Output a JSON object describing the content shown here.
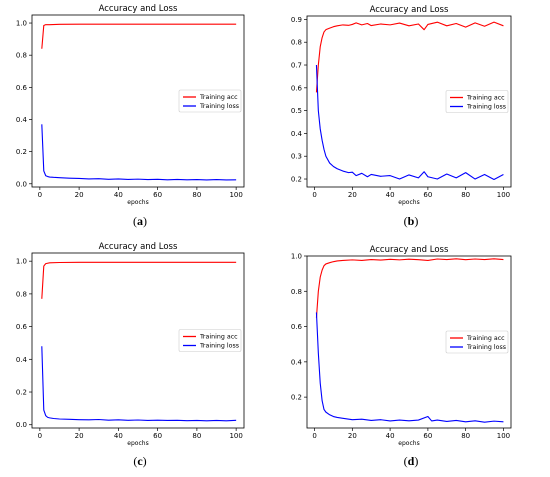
{
  "colors": {
    "acc": "#ff0000",
    "loss": "#0000ff",
    "axis": "#000000"
  },
  "chart_data": [
    {
      "type": "line",
      "caption_letter": "a",
      "title": "Accuracy and Loss",
      "xlabel": "epochs",
      "ylabel": "",
      "xlim": [
        -4,
        104
      ],
      "ylim": [
        -0.02,
        1.05
      ],
      "xticks": [
        0,
        20,
        40,
        60,
        80,
        100
      ],
      "yticks": [
        0.0,
        0.2,
        0.4,
        0.6,
        0.8,
        1.0
      ],
      "ytick_labels": [
        "0.0",
        "0.2",
        "0.4",
        "0.6",
        "0.8",
        "1.0"
      ],
      "legend": "center-right",
      "grid": false,
      "series": [
        {
          "name": "Training acc",
          "color": "#ff0000",
          "x": [
            1,
            2,
            3,
            5,
            10,
            20,
            30,
            40,
            50,
            60,
            70,
            80,
            90,
            100
          ],
          "y": [
            0.84,
            0.985,
            0.99,
            0.99,
            0.992,
            0.993,
            0.993,
            0.993,
            0.993,
            0.993,
            0.993,
            0.993,
            0.993,
            0.993
          ]
        },
        {
          "name": "Training loss",
          "color": "#0000ff",
          "x": [
            1,
            2,
            3,
            4,
            5,
            7,
            10,
            15,
            20,
            25,
            30,
            35,
            40,
            45,
            50,
            55,
            60,
            65,
            70,
            75,
            80,
            85,
            90,
            95,
            100
          ],
          "y": [
            0.37,
            0.08,
            0.05,
            0.045,
            0.042,
            0.04,
            0.038,
            0.035,
            0.033,
            0.03,
            0.032,
            0.028,
            0.03,
            0.027,
            0.029,
            0.026,
            0.028,
            0.025,
            0.027,
            0.025,
            0.026,
            0.024,
            0.026,
            0.024,
            0.025
          ]
        }
      ]
    },
    {
      "type": "line",
      "caption_letter": "b",
      "title": "Accuracy and Loss",
      "xlabel": "epochs",
      "ylabel": "",
      "xlim": [
        -4,
        104
      ],
      "ylim": [
        0.165,
        0.915
      ],
      "xticks": [
        0,
        20,
        40,
        60,
        80,
        100
      ],
      "yticks": [
        0.2,
        0.3,
        0.4,
        0.5,
        0.6,
        0.7,
        0.8,
        0.9
      ],
      "ytick_labels": [
        "0.2",
        "0.3",
        "0.4",
        "0.5",
        "0.6",
        "0.7",
        "0.8",
        "0.9"
      ],
      "legend": "center-right",
      "grid": false,
      "series": [
        {
          "name": "Training acc",
          "color": "#ff0000",
          "x": [
            1,
            2,
            3,
            4,
            5,
            6,
            8,
            10,
            12,
            15,
            18,
            20,
            22,
            25,
            28,
            30,
            35,
            40,
            45,
            50,
            55,
            58,
            60,
            65,
            70,
            75,
            80,
            85,
            90,
            95,
            100
          ],
          "y": [
            0.58,
            0.7,
            0.78,
            0.82,
            0.845,
            0.855,
            0.862,
            0.868,
            0.872,
            0.876,
            0.874,
            0.878,
            0.885,
            0.876,
            0.882,
            0.873,
            0.88,
            0.876,
            0.884,
            0.872,
            0.88,
            0.855,
            0.878,
            0.888,
            0.872,
            0.882,
            0.866,
            0.885,
            0.87,
            0.888,
            0.872
          ]
        },
        {
          "name": "Training loss",
          "color": "#0000ff",
          "x": [
            1,
            2,
            3,
            4,
            5,
            6,
            8,
            10,
            12,
            15,
            18,
            20,
            22,
            25,
            28,
            30,
            35,
            40,
            45,
            50,
            55,
            58,
            60,
            65,
            70,
            75,
            80,
            85,
            90,
            95,
            100
          ],
          "y": [
            0.7,
            0.5,
            0.42,
            0.37,
            0.33,
            0.3,
            0.27,
            0.255,
            0.245,
            0.235,
            0.228,
            0.23,
            0.215,
            0.225,
            0.21,
            0.22,
            0.212,
            0.215,
            0.2,
            0.218,
            0.205,
            0.232,
            0.21,
            0.2,
            0.222,
            0.205,
            0.228,
            0.2,
            0.22,
            0.198,
            0.22
          ]
        }
      ]
    },
    {
      "type": "line",
      "caption_letter": "c",
      "title": "Accuracy and Loss",
      "xlabel": "epochs",
      "ylabel": "",
      "xlim": [
        -4,
        104
      ],
      "ylim": [
        -0.02,
        1.05
      ],
      "xticks": [
        0,
        20,
        40,
        60,
        80,
        100
      ],
      "yticks": [
        0.0,
        0.2,
        0.4,
        0.6,
        0.8,
        1.0
      ],
      "ytick_labels": [
        "0.0",
        "0.2",
        "0.4",
        "0.6",
        "0.8",
        "1.0"
      ],
      "legend": "center-right",
      "grid": false,
      "series": [
        {
          "name": "Training acc",
          "color": "#ff0000",
          "x": [
            1,
            2,
            3,
            5,
            10,
            20,
            30,
            40,
            50,
            60,
            70,
            80,
            90,
            100
          ],
          "y": [
            0.77,
            0.97,
            0.985,
            0.99,
            0.992,
            0.993,
            0.993,
            0.993,
            0.993,
            0.993,
            0.993,
            0.993,
            0.993,
            0.993
          ]
        },
        {
          "name": "Training loss",
          "color": "#0000ff",
          "x": [
            1,
            2,
            3,
            4,
            5,
            7,
            10,
            15,
            20,
            25,
            30,
            35,
            40,
            45,
            50,
            55,
            60,
            65,
            70,
            75,
            80,
            85,
            90,
            95,
            100
          ],
          "y": [
            0.48,
            0.09,
            0.055,
            0.045,
            0.042,
            0.038,
            0.035,
            0.033,
            0.031,
            0.03,
            0.032,
            0.028,
            0.03,
            0.027,
            0.029,
            0.026,
            0.028,
            0.026,
            0.027,
            0.025,
            0.026,
            0.024,
            0.026,
            0.024,
            0.027
          ]
        }
      ]
    },
    {
      "type": "line",
      "caption_letter": "d",
      "title": "Accuracy and Loss",
      "xlabel": "epochs",
      "ylabel": "",
      "xlim": [
        -4,
        104
      ],
      "ylim": [
        0.025,
        1.0
      ],
      "xticks": [
        0,
        20,
        40,
        60,
        80,
        100
      ],
      "yticks": [
        0.2,
        0.4,
        0.6,
        0.8,
        1.0
      ],
      "ytick_labels": [
        "0.2",
        "0.4",
        "0.6",
        "0.8",
        "1.0"
      ],
      "legend": "center-right",
      "grid": false,
      "series": [
        {
          "name": "Training acc",
          "color": "#ff0000",
          "x": [
            1,
            2,
            3,
            4,
            5,
            6,
            8,
            10,
            12,
            15,
            20,
            25,
            30,
            35,
            40,
            45,
            50,
            55,
            60,
            65,
            70,
            75,
            80,
            85,
            90,
            95,
            100
          ],
          "y": [
            0.65,
            0.8,
            0.88,
            0.92,
            0.945,
            0.955,
            0.962,
            0.968,
            0.972,
            0.975,
            0.978,
            0.975,
            0.98,
            0.977,
            0.981,
            0.978,
            0.982,
            0.979,
            0.975,
            0.983,
            0.98,
            0.984,
            0.979,
            0.983,
            0.98,
            0.984,
            0.98
          ]
        },
        {
          "name": "Training loss",
          "color": "#0000ff",
          "x": [
            1,
            2,
            3,
            4,
            5,
            6,
            8,
            10,
            12,
            15,
            20,
            25,
            30,
            35,
            40,
            45,
            50,
            55,
            60,
            62,
            65,
            70,
            75,
            80,
            85,
            90,
            95,
            100
          ],
          "y": [
            0.68,
            0.45,
            0.28,
            0.18,
            0.13,
            0.115,
            0.1,
            0.09,
            0.085,
            0.08,
            0.072,
            0.075,
            0.068,
            0.072,
            0.065,
            0.07,
            0.066,
            0.07,
            0.09,
            0.065,
            0.07,
            0.062,
            0.068,
            0.06,
            0.066,
            0.058,
            0.064,
            0.06
          ]
        }
      ]
    }
  ]
}
